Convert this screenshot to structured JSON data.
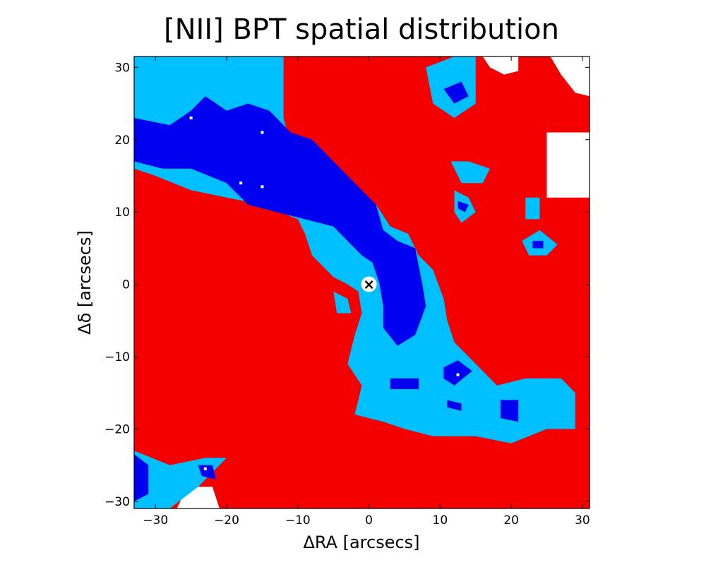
{
  "chart_data": {
    "type": "heatmap",
    "title": "[NII] BPT spatial distribution",
    "xlabel": "ΔRA [arcsecs]",
    "ylabel": "Δδ [arcsecs]",
    "xlim": [
      -33,
      31
    ],
    "ylim": [
      -31,
      31.5
    ],
    "xticks": [
      -30,
      -20,
      -10,
      0,
      10,
      20,
      30
    ],
    "yticks": [
      30,
      20,
      10,
      0,
      -10,
      -20,
      -30
    ],
    "xtick_labels": [
      "−30",
      "−20",
      "−10",
      "0",
      "10",
      "20",
      "30"
    ],
    "ytick_labels": [
      "30",
      "20",
      "10",
      "0",
      "−10",
      "−20",
      "−30"
    ],
    "grid": false,
    "colors": {
      "background": "#f50000",
      "composite": "#00bfff",
      "hii": "#0000f0",
      "empty": "#ffffff",
      "axes": "#000000"
    },
    "center_marker": {
      "x": 0,
      "y": 0,
      "symbol": "×"
    },
    "regions": {
      "background_extent": [
        [
          -33,
          31.5
        ],
        [
          31,
          31.5
        ],
        [
          31,
          -31
        ],
        [
          -33,
          -31
        ]
      ],
      "empty": [
        [
          [
            16,
            31.5
          ],
          [
            21,
            31.5
          ],
          [
            21,
            29.5
          ],
          [
            19,
            29
          ],
          [
            17,
            30
          ]
        ],
        [
          [
            25.5,
            31.5
          ],
          [
            31,
            31.5
          ],
          [
            31,
            26
          ],
          [
            29,
            26.5
          ],
          [
            27,
            29
          ]
        ],
        [
          [
            25,
            21
          ],
          [
            31,
            21
          ],
          [
            31,
            12
          ],
          [
            25,
            12
          ],
          [
            25,
            15
          ]
        ],
        [
          [
            -27,
            -31
          ],
          [
            -21,
            -31
          ],
          [
            -22,
            -28
          ],
          [
            -24,
            -28
          ],
          [
            -26,
            -29
          ]
        ]
      ],
      "composite": [
        [
          [
            -33,
            31.5
          ],
          [
            -12,
            31.5
          ],
          [
            -12,
            23
          ],
          [
            -11,
            19
          ],
          [
            -9,
            18
          ],
          [
            -5,
            17
          ],
          [
            -2,
            13
          ],
          [
            1,
            11
          ],
          [
            3,
            8
          ],
          [
            5.5,
            7
          ],
          [
            7,
            4
          ],
          [
            9,
            2
          ],
          [
            10.5,
            -2
          ],
          [
            11,
            -5
          ],
          [
            12,
            -8
          ],
          [
            15,
            -11
          ],
          [
            18,
            -14
          ],
          [
            22,
            -13
          ],
          [
            27,
            -13
          ],
          [
            29,
            -15
          ],
          [
            29,
            -20
          ],
          [
            25,
            -20
          ],
          [
            20,
            -22
          ],
          [
            15,
            -21
          ],
          [
            9,
            -21
          ],
          [
            5,
            -20
          ],
          [
            2,
            -19
          ],
          [
            -2,
            -18
          ],
          [
            -1,
            -14
          ],
          [
            -3,
            -11
          ],
          [
            -2,
            -7
          ],
          [
            -1,
            -4
          ],
          [
            -1.5,
            -1
          ],
          [
            -3,
            0
          ],
          [
            -5,
            1
          ],
          [
            -8,
            4
          ],
          [
            -9,
            7
          ],
          [
            -10,
            9
          ],
          [
            -15,
            11
          ],
          [
            -20,
            12
          ],
          [
            -25,
            13
          ],
          [
            -30,
            15
          ],
          [
            -33,
            16
          ]
        ],
        [
          [
            -33,
            -23
          ],
          [
            -28,
            -25
          ],
          [
            -23,
            -24
          ],
          [
            -20,
            -24
          ],
          [
            -24,
            -28
          ],
          [
            -28,
            -31
          ],
          [
            -33,
            -31
          ]
        ],
        [
          [
            8,
            30
          ],
          [
            12,
            31.5
          ],
          [
            15,
            31.5
          ],
          [
            15,
            25
          ],
          [
            12,
            23
          ],
          [
            9,
            25
          ]
        ],
        [
          [
            11.5,
            17
          ],
          [
            14,
            17
          ],
          [
            17,
            16
          ],
          [
            16,
            14
          ],
          [
            13,
            14
          ]
        ],
        [
          [
            12,
            13
          ],
          [
            14,
            12
          ],
          [
            15,
            10
          ],
          [
            13,
            8.5
          ],
          [
            12,
            10
          ]
        ],
        [
          [
            22,
            12
          ],
          [
            24,
            12
          ],
          [
            24,
            9
          ],
          [
            22,
            9
          ]
        ],
        [
          [
            21.5,
            6
          ],
          [
            24,
            7.5
          ],
          [
            26.5,
            5.5
          ],
          [
            25,
            4
          ],
          [
            22.5,
            4
          ]
        ],
        [
          [
            -5,
            -1
          ],
          [
            -3,
            -2
          ],
          [
            -2.5,
            -4
          ],
          [
            -4.5,
            -4
          ]
        ]
      ],
      "hii": [
        [
          [
            -33,
            23
          ],
          [
            -28,
            22
          ],
          [
            -25,
            24
          ],
          [
            -23,
            26
          ],
          [
            -20,
            24
          ],
          [
            -17,
            25
          ],
          [
            -14,
            24
          ],
          [
            -11,
            21
          ],
          [
            -8,
            20
          ],
          [
            -5,
            17
          ],
          [
            -2,
            14
          ],
          [
            1,
            11
          ],
          [
            2,
            7.5
          ],
          [
            4,
            6
          ],
          [
            6.5,
            5
          ],
          [
            7.5,
            0
          ],
          [
            8,
            -3
          ],
          [
            6.5,
            -7
          ],
          [
            4,
            -8.5
          ],
          [
            2,
            -6
          ],
          [
            2,
            -3
          ],
          [
            1.5,
            0
          ],
          [
            0.5,
            3
          ],
          [
            -1,
            4
          ],
          [
            -3,
            6
          ],
          [
            -5,
            8
          ],
          [
            -9,
            9
          ],
          [
            -13,
            10
          ],
          [
            -17,
            11
          ],
          [
            -20,
            14
          ],
          [
            -25,
            16
          ],
          [
            -29,
            16
          ],
          [
            -33,
            17
          ]
        ],
        [
          [
            -33,
            -23.5
          ],
          [
            -31,
            -25
          ],
          [
            -31,
            -29
          ],
          [
            -33,
            -30
          ]
        ],
        [
          [
            -24,
            -25
          ],
          [
            -22,
            -25
          ],
          [
            -21.5,
            -27
          ],
          [
            -23.5,
            -26.5
          ]
        ],
        [
          [
            10.5,
            -11.5
          ],
          [
            12.5,
            -10.5
          ],
          [
            14.5,
            -12
          ],
          [
            12,
            -14
          ],
          [
            10.5,
            -13
          ]
        ],
        [
          [
            3,
            -13
          ],
          [
            7,
            -13
          ],
          [
            7,
            -14.5
          ],
          [
            3,
            -14.5
          ]
        ],
        [
          [
            18.5,
            -16
          ],
          [
            21,
            -16
          ],
          [
            21,
            -19
          ],
          [
            18.5,
            -18.5
          ]
        ],
        [
          [
            11,
            -16
          ],
          [
            13,
            -16.5
          ],
          [
            13,
            -17.5
          ],
          [
            11,
            -17
          ]
        ],
        [
          [
            10.5,
            27
          ],
          [
            13,
            28
          ],
          [
            14,
            26
          ],
          [
            12,
            25
          ]
        ],
        [
          [
            12.5,
            11.5
          ],
          [
            14,
            11
          ],
          [
            13.5,
            10
          ],
          [
            12.5,
            10.5
          ]
        ],
        [
          [
            23,
            6
          ],
          [
            24.5,
            6
          ],
          [
            24.5,
            5
          ],
          [
            23,
            5
          ]
        ]
      ],
      "empty_specks": [
        [
          -15,
          21
        ],
        [
          -15,
          13.5
        ],
        [
          -18,
          14
        ],
        [
          -25,
          23
        ],
        [
          12.5,
          -12.5
        ],
        [
          -23,
          -25.5
        ]
      ]
    }
  }
}
